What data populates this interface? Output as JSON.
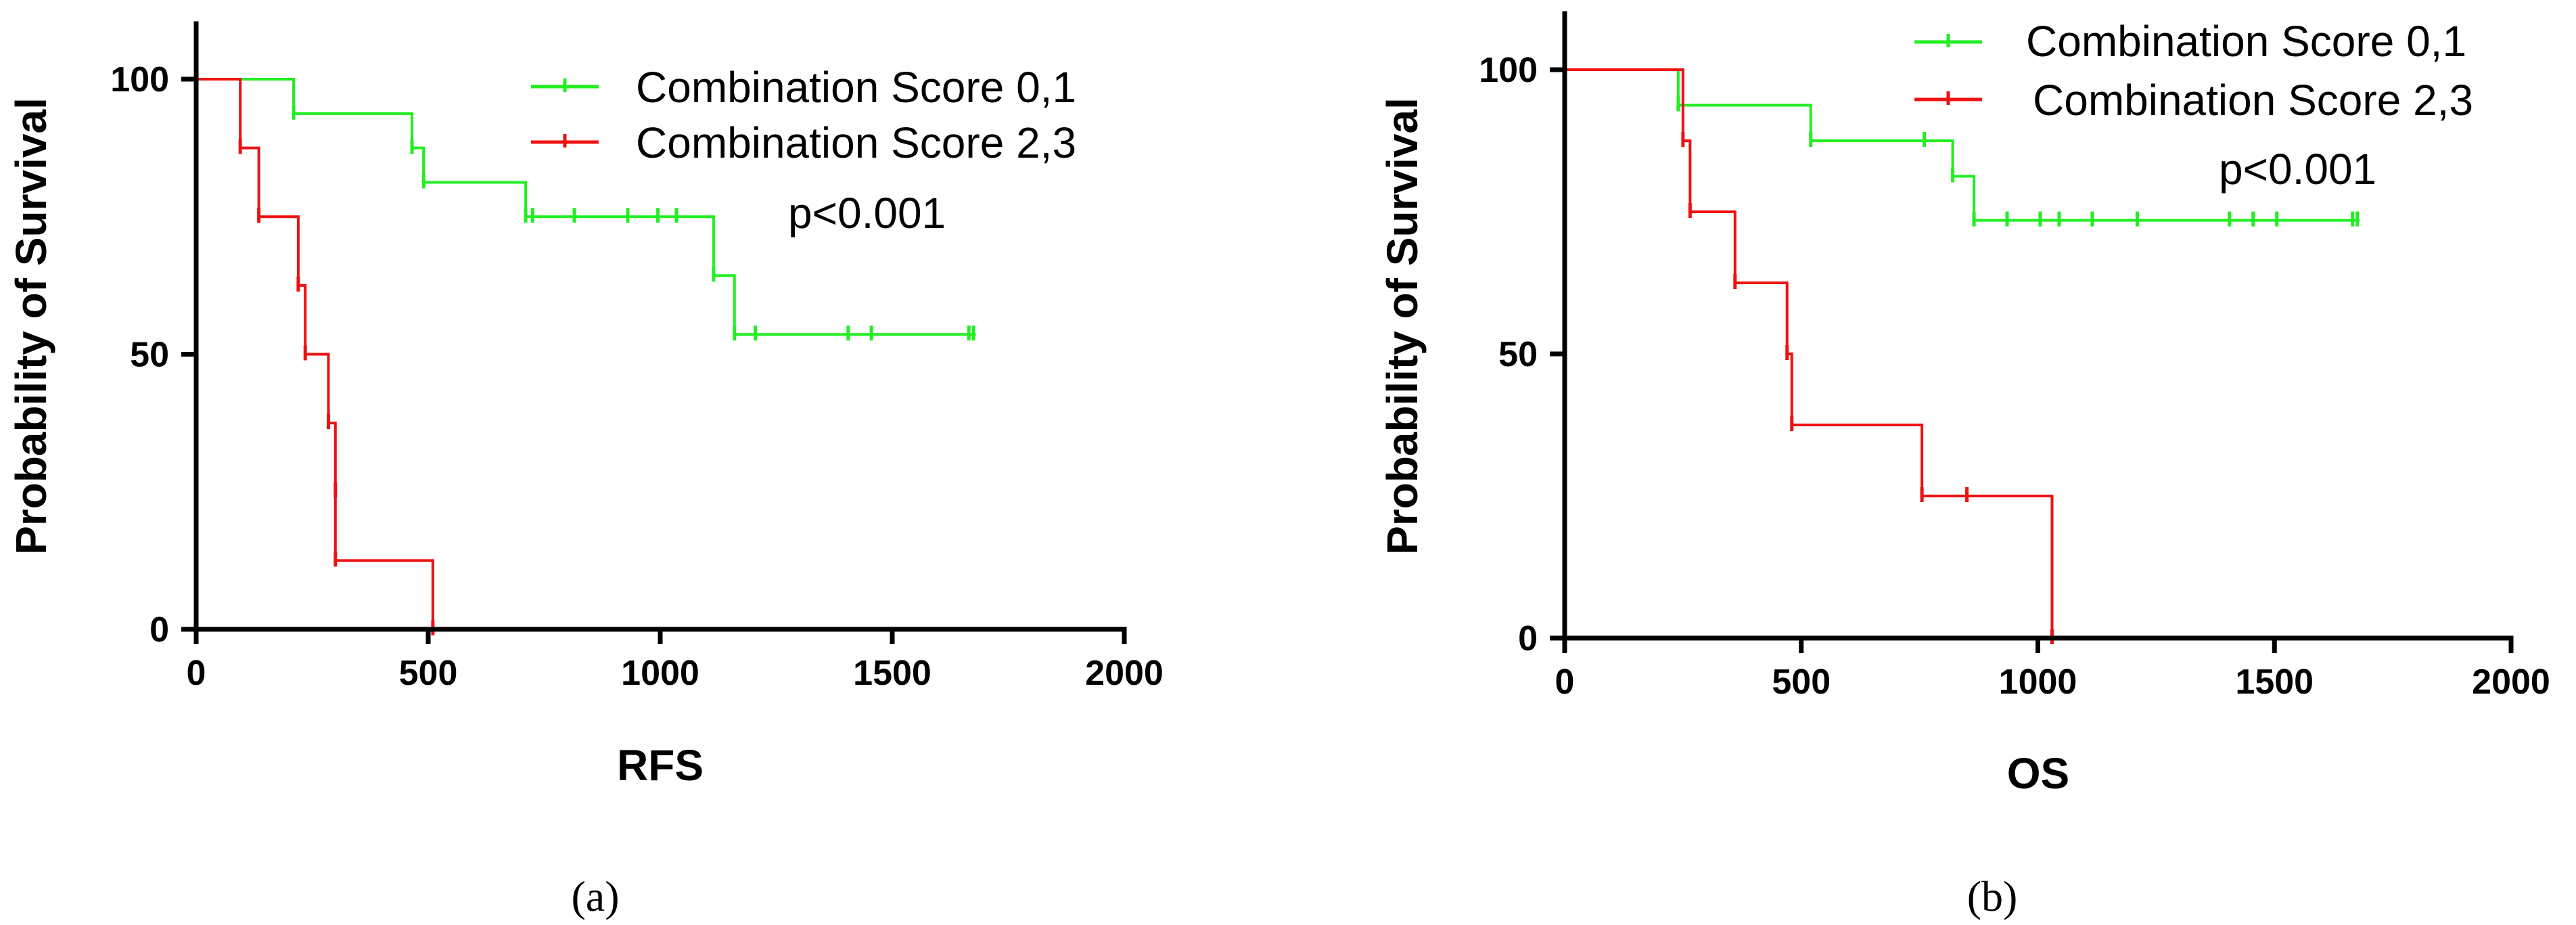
{
  "colors": {
    "group_low": "#22ee22",
    "group_high": "#ee1111",
    "axis": "#000000"
  },
  "chart_data": [
    {
      "type": "line",
      "subtype": "kaplan-meier step",
      "caption": "(a)",
      "xlabel": "RFS",
      "ylabel": "Probability of Survival",
      "xlim": [
        0,
        2000
      ],
      "ylim": [
        0,
        100
      ],
      "x_ticks": [
        0,
        500,
        1000,
        1500,
        2000
      ],
      "y_ticks": [
        0,
        50,
        100
      ],
      "x_tick_labels": [
        "0",
        "500",
        "1000",
        "1500",
        "2000"
      ],
      "y_tick_labels": [
        "0",
        "50",
        "100"
      ],
      "legend_position": "top-right",
      "annotation": "p<0.001",
      "series": [
        {
          "name": "Combination Score 0,1",
          "color": "#22ee22",
          "steps": [
            [
              0,
              100
            ],
            [
              210,
              93.75
            ],
            [
              465,
              87.5
            ],
            [
              490,
              81.25
            ],
            [
              710,
              75
            ],
            [
              1115,
              64.3
            ],
            [
              1160,
              53.6
            ],
            [
              1680,
              53.6
            ]
          ],
          "censored": [
            [
              210,
              93.75
            ],
            [
              465,
              87.5
            ],
            [
              490,
              81.25
            ],
            [
              710,
              75
            ],
            [
              725,
              75
            ],
            [
              815,
              75
            ],
            [
              930,
              75
            ],
            [
              995,
              75
            ],
            [
              1035,
              75
            ],
            [
              1115,
              64.3
            ],
            [
              1160,
              53.6
            ],
            [
              1205,
              53.6
            ],
            [
              1405,
              53.6
            ],
            [
              1455,
              53.6
            ],
            [
              1665,
              53.6
            ],
            [
              1675,
              53.6
            ]
          ]
        },
        {
          "name": "Combination Score 2,3",
          "color": "#ee1111",
          "steps": [
            [
              0,
              100
            ],
            [
              95,
              87.5
            ],
            [
              135,
              75
            ],
            [
              220,
              62.5
            ],
            [
              235,
              50
            ],
            [
              285,
              37.5
            ],
            [
              300,
              25
            ],
            [
              300,
              12.5
            ],
            [
              510,
              0
            ]
          ],
          "censored": [
            [
              95,
              87.5
            ],
            [
              135,
              75
            ],
            [
              220,
              62.5
            ],
            [
              235,
              50
            ],
            [
              285,
              37.5
            ],
            [
              300,
              25
            ],
            [
              300,
              12.5
            ],
            [
              510,
              0
            ]
          ]
        }
      ]
    },
    {
      "type": "line",
      "subtype": "kaplan-meier step",
      "caption": "(b)",
      "xlabel": "OS",
      "ylabel": "Probability of Survival",
      "xlim": [
        0,
        2000
      ],
      "ylim": [
        0,
        100
      ],
      "x_ticks": [
        0,
        500,
        1000,
        1500,
        2000
      ],
      "y_ticks": [
        0,
        50,
        100
      ],
      "x_tick_labels": [
        "0",
        "500",
        "1000",
        "1500",
        "2000"
      ],
      "y_tick_labels": [
        "0",
        "50",
        "100"
      ],
      "legend_position": "top-right",
      "annotation": "p<0.001",
      "series": [
        {
          "name": "Combination Score 0,1",
          "color": "#22ee22",
          "steps": [
            [
              0,
              100
            ],
            [
              240,
              93.75
            ],
            [
              520,
              87.5
            ],
            [
              820,
              81.25
            ],
            [
              865,
              73.5
            ],
            [
              1680,
              73.5
            ]
          ],
          "censored": [
            [
              240,
              93.75
            ],
            [
              520,
              87.5
            ],
            [
              760,
              87.5
            ],
            [
              820,
              81.25
            ],
            [
              865,
              73.5
            ],
            [
              935,
              73.5
            ],
            [
              1005,
              73.5
            ],
            [
              1045,
              73.5
            ],
            [
              1115,
              73.5
            ],
            [
              1210,
              73.5
            ],
            [
              1405,
              73.5
            ],
            [
              1455,
              73.5
            ],
            [
              1505,
              73.5
            ],
            [
              1665,
              73.5
            ],
            [
              1675,
              73.5
            ]
          ]
        },
        {
          "name": "Combination Score 2,3",
          "color": "#ee1111",
          "steps": [
            [
              0,
              100
            ],
            [
              250,
              87.5
            ],
            [
              265,
              75
            ],
            [
              360,
              62.5
            ],
            [
              470,
              50
            ],
            [
              480,
              37.5
            ],
            [
              755,
              25
            ],
            [
              1030,
              0
            ]
          ],
          "censored": [
            [
              250,
              87.5
            ],
            [
              265,
              75
            ],
            [
              360,
              62.5
            ],
            [
              470,
              50
            ],
            [
              480,
              37.5
            ],
            [
              755,
              25
            ],
            [
              850,
              25
            ],
            [
              1030,
              0
            ]
          ]
        }
      ]
    }
  ]
}
